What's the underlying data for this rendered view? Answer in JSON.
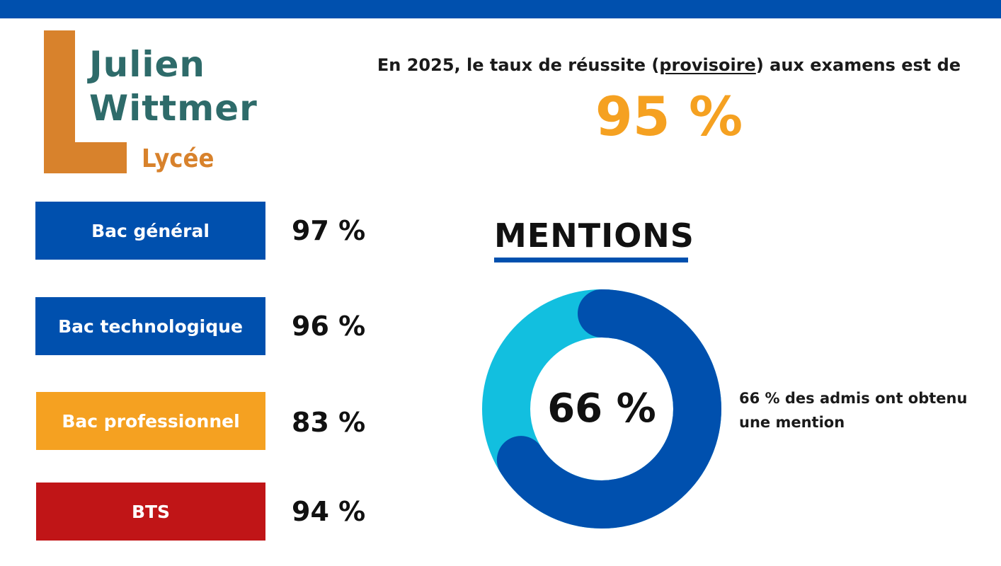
{
  "colors": {
    "brand_blue": "#0050AE",
    "accent_orange": "#F5A121",
    "logo_orange": "#D8822C",
    "logo_teal": "#2E6B6A",
    "bts_red": "#C01517",
    "donut_light": "#12BFDF",
    "donut_dark": "#0050AE"
  },
  "logo": {
    "line1": "Julien",
    "line2": "Wittmer",
    "line3": "Lycée"
  },
  "headline": {
    "before": "En 2025, le taux de réussite (",
    "underlined": "provisoire",
    "after": ") aux examens est de",
    "overall_rate": "95 %"
  },
  "exams": [
    {
      "label": "Bac général",
      "rate": "97 %",
      "color": "#0050AE"
    },
    {
      "label": "Bac technologique",
      "rate": "96 %",
      "color": "#0050AE"
    },
    {
      "label": "Bac professionnel",
      "rate": "83 %",
      "color": "#F5A121"
    },
    {
      "label": "BTS",
      "rate": "94 %",
      "color": "#C01517"
    }
  ],
  "mentions": {
    "title": "MENTIONS",
    "center_label": "66 %",
    "note": "66 % des admis ont obtenu une mention"
  },
  "chart_data": {
    "type": "pie",
    "title": "MENTIONS",
    "labels": [
      "",
      ""
    ],
    "values": [
      66,
      34
    ],
    "colors": [
      "#0050AE",
      "#12BFDF"
    ],
    "donut": true
  }
}
